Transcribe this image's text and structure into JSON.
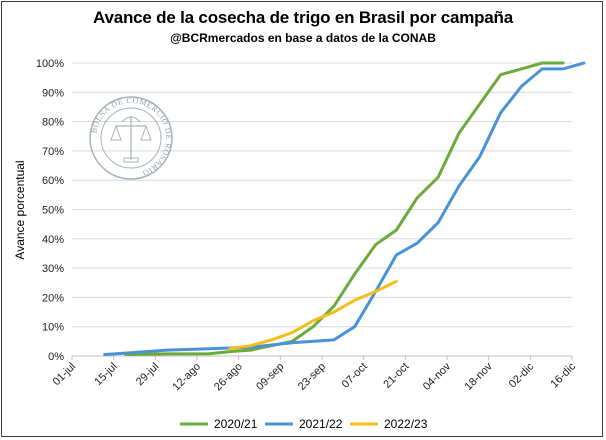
{
  "chart_data": {
    "type": "line",
    "title": "Avance de la cosecha de trigo en Brasil por campaña",
    "subtitle": "@BCRmercados en base a datos de la CONAB",
    "ylabel": "Avance porcentual",
    "xlabel": "",
    "categories": [
      "01-jul",
      "15-jul",
      "29-jul",
      "12-ago",
      "26-ago",
      "09-sep",
      "23-sep",
      "07-oct",
      "21-oct",
      "04-nov",
      "18-nov",
      "02-dic",
      "16-dic"
    ],
    "yticks": [
      "0%",
      "10%",
      "20%",
      "30%",
      "40%",
      "50%",
      "60%",
      "70%",
      "80%",
      "90%",
      "100%"
    ],
    "ylim": [
      0,
      100
    ],
    "xlim_days": [
      0,
      168
    ],
    "grid": "horizontal",
    "legend_position": "bottom",
    "series": [
      {
        "name": "2020/21",
        "color": "#6aab3c",
        "points": [
          [
            18,
            0.5
          ],
          [
            32,
            0.7
          ],
          [
            46,
            0.8
          ],
          [
            53,
            1.5
          ],
          [
            60,
            2
          ],
          [
            74,
            5
          ],
          [
            81,
            10
          ],
          [
            88,
            17
          ],
          [
            95,
            28
          ],
          [
            102,
            38
          ],
          [
            109,
            43
          ],
          [
            116,
            54
          ],
          [
            123,
            61
          ],
          [
            130,
            76
          ],
          [
            137,
            86
          ],
          [
            144,
            96
          ],
          [
            151,
            98
          ],
          [
            158,
            100
          ],
          [
            165,
            100
          ]
        ]
      },
      {
        "name": "2021/22",
        "color": "#4a92d6",
        "points": [
          [
            11,
            0.5
          ],
          [
            18,
            1
          ],
          [
            25,
            1.5
          ],
          [
            32,
            2
          ],
          [
            46,
            2.5
          ],
          [
            60,
            3
          ],
          [
            74,
            4.5
          ],
          [
            88,
            5.5
          ],
          [
            95,
            10
          ],
          [
            102,
            22
          ],
          [
            109,
            34.5
          ],
          [
            116,
            38.5
          ],
          [
            123,
            45.5
          ],
          [
            130,
            58
          ],
          [
            137,
            68
          ],
          [
            144,
            83
          ],
          [
            151,
            92
          ],
          [
            158,
            98
          ],
          [
            165,
            98
          ],
          [
            172,
            100
          ]
        ]
      },
      {
        "name": "2022/23",
        "color": "#f6bd19",
        "points": [
          [
            53,
            2.5
          ],
          [
            60,
            3.5
          ],
          [
            67,
            5.5
          ],
          [
            74,
            8
          ],
          [
            81,
            12
          ],
          [
            88,
            15
          ],
          [
            95,
            19
          ],
          [
            102,
            22
          ],
          [
            109,
            25.5
          ]
        ]
      }
    ],
    "watermark": "BOLSA DE COMERCIO DE ROSARIO"
  }
}
